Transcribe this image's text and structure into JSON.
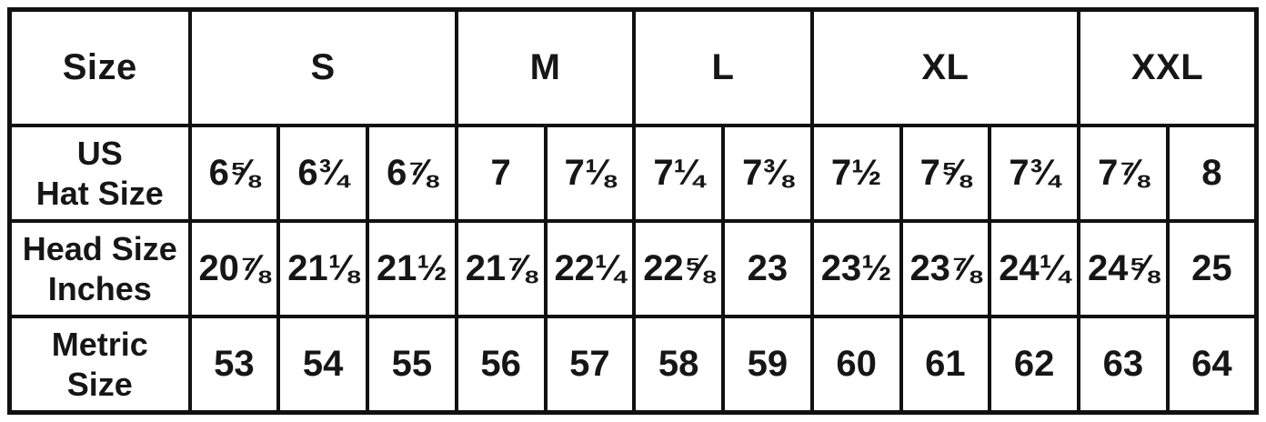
{
  "chart_data": {
    "type": "table",
    "corner_header": "Size",
    "size_groups": [
      {
        "label": "S",
        "colspan": 3
      },
      {
        "label": "M",
        "colspan": 2
      },
      {
        "label": "L",
        "colspan": 2
      },
      {
        "label": "XL",
        "colspan": 3
      },
      {
        "label": "XXL",
        "colspan": 2
      }
    ],
    "rows": [
      {
        "label": [
          "US",
          "Hat Size"
        ],
        "values": [
          "6⅝",
          "6¾",
          "6⅞",
          "7",
          "7⅛",
          "7¼",
          "7⅜",
          "7½",
          "7⅝",
          "7¾",
          "7⅞",
          "8"
        ]
      },
      {
        "label": [
          "Head Size",
          "Inches"
        ],
        "values": [
          "20⅞",
          "21⅛",
          "21½",
          "21⅞",
          "22¼",
          "22⅝",
          "23",
          "23½",
          "23⅞",
          "24¼",
          "24⅝",
          "25"
        ]
      },
      {
        "label": [
          "Metric",
          "Size"
        ],
        "values": [
          "53",
          "54",
          "55",
          "56",
          "57",
          "58",
          "59",
          "60",
          "61",
          "62",
          "63",
          "64"
        ]
      }
    ],
    "colors": {
      "border": "#111111",
      "text": "#161616",
      "background": "#ffffff"
    }
  }
}
